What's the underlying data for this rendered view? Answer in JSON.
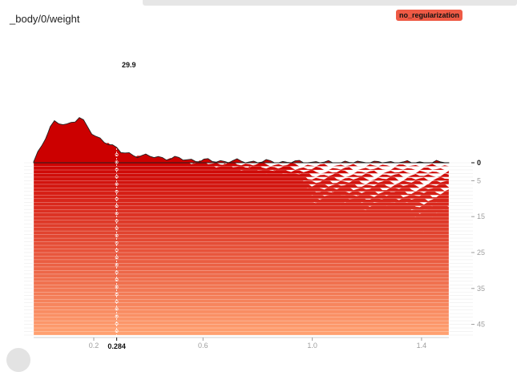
{
  "header": {
    "title": "_body/0/weight",
    "run_badge": "no_regularization"
  },
  "chart_data": {
    "type": "area",
    "kind": "histogram-offset-stack",
    "title": "_body/0/weight",
    "xlim": [
      -0.02,
      1.5
    ],
    "x_ticks": [
      "0.2",
      "0.6",
      "1.0",
      "1.4"
    ],
    "x_tick_values": [
      0.2,
      0.6,
      1.0,
      1.4
    ],
    "hover_x_label": "0.284",
    "hover_x": 0.284,
    "hover_y_label": "29.9",
    "y_ticks": [
      "0",
      "5",
      "15",
      "25",
      "35",
      "45"
    ],
    "step_ticks": [
      0,
      5,
      15,
      25,
      35,
      45
    ],
    "steps": 49,
    "color_first": "#cc0000",
    "color_last": "#ffa070",
    "first_step_profile": {
      "x": [
        -0.02,
        0.05,
        0.1,
        0.15,
        0.2,
        0.25,
        0.3,
        0.35,
        0.4,
        0.45,
        0.5,
        0.55,
        0.6,
        0.7,
        0.8,
        0.9,
        1.0,
        1.2,
        1.4,
        1.5
      ],
      "y": [
        0,
        8,
        7,
        9,
        5,
        4,
        2,
        1.5,
        1.2,
        1,
        0.8,
        0.6,
        0.4,
        0.3,
        0.2,
        0.1,
        0.05,
        0.02,
        0.01,
        0
      ]
    },
    "last_step_profile": {
      "x": [
        -0.02,
        0.05,
        0.1,
        0.2,
        0.3,
        0.35,
        0.4,
        0.45,
        0.5,
        0.6,
        0.7,
        0.8,
        0.9,
        0.95,
        1.0,
        1.1,
        1.2,
        1.3,
        1.4,
        1.5
      ],
      "y": [
        27,
        28,
        26,
        24,
        20,
        22,
        16,
        18,
        14,
        13,
        12,
        11,
        10,
        9,
        4,
        4.5,
        3.5,
        4,
        3,
        4
      ]
    }
  }
}
